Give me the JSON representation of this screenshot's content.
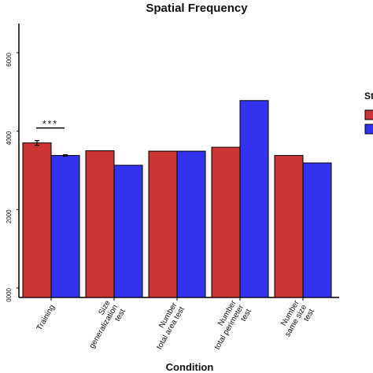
{
  "chart_data": {
    "type": "bar",
    "title": "Spatial Frequency",
    "xlabel": "Condition",
    "ylabel": "",
    "categories": [
      [
        "Training"
      ],
      [
        "Size",
        "generalization",
        "test"
      ],
      [
        "Number",
        "total area test"
      ],
      [
        "Number",
        "total perimeter",
        "test"
      ],
      [
        "Number",
        "same size",
        "test"
      ]
    ],
    "series": [
      {
        "color": "#cc3333",
        "values": [
          0.037,
          0.035,
          0.0349,
          0.0359,
          0.0338
        ]
      },
      {
        "color": "#3333ee",
        "values": [
          0.0338,
          0.0313,
          0.0349,
          0.0478,
          0.0319
        ]
      }
    ],
    "error_bars": [
      {
        "series": 0,
        "category": 0,
        "value": 0.037,
        "err": 0.0006
      },
      {
        "series": 1,
        "category": 0,
        "value": 0.0338,
        "err": 0.0002
      }
    ],
    "ylim": [
      0.0,
      0.06
    ],
    "y_ticks": [
      {
        "value": 0.06,
        "label": "6000"
      },
      {
        "value": 0.04,
        "label": "4000"
      },
      {
        "value": 0.02,
        "label": "2000"
      },
      {
        "value": 0.0,
        "label": "0000"
      }
    ],
    "annotations": [
      {
        "text": "***",
        "category": 0
      }
    ],
    "legend": {
      "title": "St",
      "placement": "right"
    },
    "grid": false
  }
}
